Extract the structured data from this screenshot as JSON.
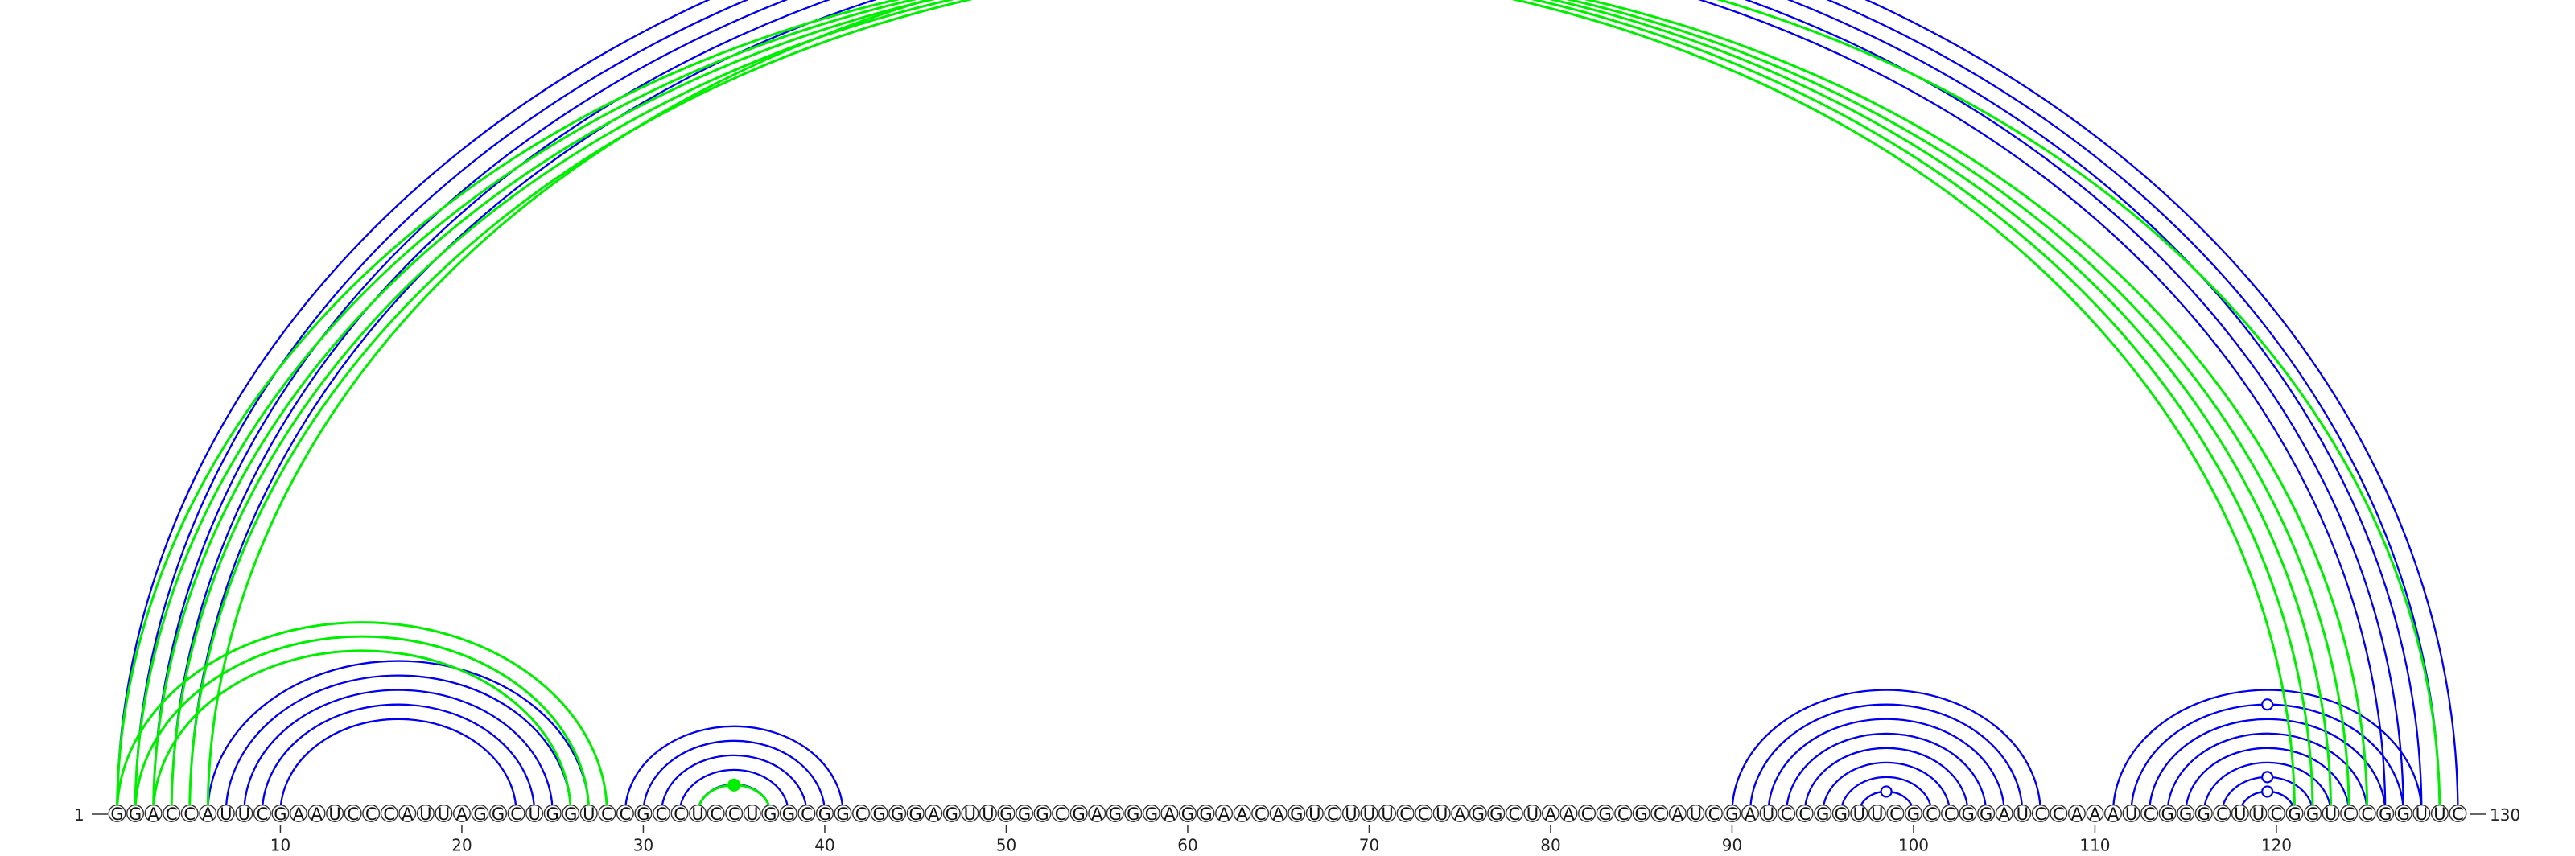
{
  "sequence": "GGACCAUUCGAAUCCCAUUAGGCUGGUCCGCCUCCUGGCGGCGGGAGUUGGGCGAGGGAGGAACAGUCUUUCCUAGGCUAACGCGCAUCGAUCCGGUUCGCCGGAUCCAAAUCGGGCUUCGGUCCGGUUC",
  "start_label": "1",
  "end_label": "130",
  "ticks": [
    10,
    20,
    30,
    40,
    50,
    60,
    70,
    80,
    90,
    100,
    110,
    120
  ],
  "colors": {
    "primary": "#0000ee",
    "secondary": "#00ee00",
    "background": "#ffffff"
  },
  "arc_sets": [
    {
      "name": "blue",
      "color": "#0000ee",
      "pairs": [
        [
          1,
          130
        ],
        [
          2,
          129
        ],
        [
          3,
          128
        ],
        [
          4,
          127
        ],
        [
          5,
          126
        ],
        [
          6,
          27
        ],
        [
          7,
          26
        ],
        [
          8,
          25
        ],
        [
          9,
          24
        ],
        [
          10,
          23
        ],
        [
          29,
          41
        ],
        [
          30,
          40
        ],
        [
          31,
          39
        ],
        [
          32,
          38
        ],
        [
          33,
          37
        ],
        [
          90,
          107
        ],
        [
          91,
          106
        ],
        [
          92,
          105
        ],
        [
          93,
          104
        ],
        [
          94,
          103
        ],
        [
          95,
          102
        ],
        [
          96,
          101
        ],
        [
          97,
          100
        ],
        [
          111,
          128
        ],
        [
          112,
          127
        ],
        [
          113,
          126
        ],
        [
          114,
          125
        ],
        [
          115,
          124
        ],
        [
          116,
          123
        ],
        [
          117,
          122
        ],
        [
          118,
          121
        ]
      ],
      "markers": [
        [
          2,
          129
        ],
        [
          97,
          100
        ],
        [
          117,
          122
        ],
        [
          118,
          121
        ],
        [
          112,
          127
        ]
      ]
    },
    {
      "name": "green",
      "color": "#00ee00",
      "pairs": [
        [
          1,
          121
        ],
        [
          2,
          122
        ],
        [
          3,
          123
        ],
        [
          4,
          124
        ],
        [
          5,
          125
        ],
        [
          6,
          129
        ],
        [
          1,
          28
        ],
        [
          2,
          27
        ],
        [
          3,
          26
        ],
        [
          33,
          37
        ]
      ],
      "markers": [
        [
          33,
          37
        ]
      ]
    }
  ]
}
